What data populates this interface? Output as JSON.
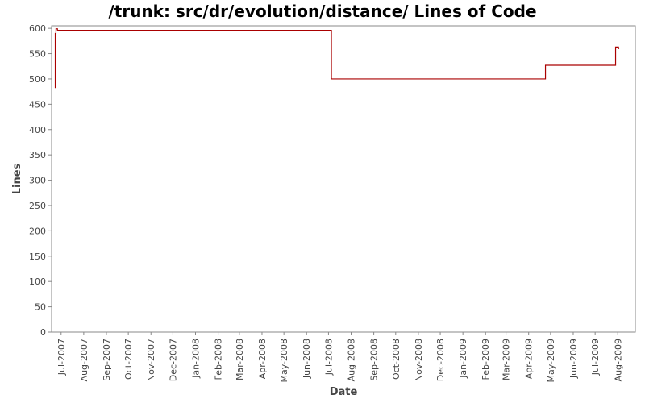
{
  "chart_data": {
    "type": "line",
    "title": "/trunk: src/dr/evolution/distance/ Lines of Code",
    "xlabel": "Date",
    "ylabel": "Lines",
    "ylim": [
      0,
      605
    ],
    "xlim": [
      "2007-06-18",
      "2009-08-25"
    ],
    "yticks": [
      0,
      50,
      100,
      150,
      200,
      250,
      300,
      350,
      400,
      450,
      500,
      550,
      600
    ],
    "xticks": [
      {
        "date": "2007-07-01",
        "label": "Jul-2007"
      },
      {
        "date": "2007-08-01",
        "label": "Aug-2007"
      },
      {
        "date": "2007-09-01",
        "label": "Sep-2007"
      },
      {
        "date": "2007-10-01",
        "label": "Oct-2007"
      },
      {
        "date": "2007-11-01",
        "label": "Nov-2007"
      },
      {
        "date": "2007-12-01",
        "label": "Dec-2007"
      },
      {
        "date": "2008-01-01",
        "label": "Jan-2008"
      },
      {
        "date": "2008-02-01",
        "label": "Feb-2008"
      },
      {
        "date": "2008-03-01",
        "label": "Mar-2008"
      },
      {
        "date": "2008-04-01",
        "label": "Apr-2008"
      },
      {
        "date": "2008-05-01",
        "label": "May-2008"
      },
      {
        "date": "2008-06-01",
        "label": "Jun-2008"
      },
      {
        "date": "2008-07-01",
        "label": "Jul-2008"
      },
      {
        "date": "2008-08-01",
        "label": "Aug-2008"
      },
      {
        "date": "2008-09-01",
        "label": "Sep-2008"
      },
      {
        "date": "2008-10-01",
        "label": "Oct-2008"
      },
      {
        "date": "2008-11-01",
        "label": "Nov-2008"
      },
      {
        "date": "2008-12-01",
        "label": "Dec-2008"
      },
      {
        "date": "2009-01-01",
        "label": "Jan-2009"
      },
      {
        "date": "2009-02-01",
        "label": "Feb-2009"
      },
      {
        "date": "2009-03-01",
        "label": "Mar-2009"
      },
      {
        "date": "2009-04-01",
        "label": "Apr-2009"
      },
      {
        "date": "2009-05-01",
        "label": "May-2009"
      },
      {
        "date": "2009-06-01",
        "label": "Jun-2009"
      },
      {
        "date": "2009-07-01",
        "label": "Jul-2009"
      },
      {
        "date": "2009-08-01",
        "label": "Aug-2009"
      }
    ],
    "grid": false,
    "legend": "none",
    "series": [
      {
        "color": "#aa0000",
        "step": true,
        "points": [
          {
            "x": "2007-06-23",
            "y": 482
          },
          {
            "x": "2007-06-23",
            "y": 590
          },
          {
            "x": "2007-06-24",
            "y": 599
          },
          {
            "x": "2007-06-26",
            "y": 596
          },
          {
            "x": "2008-07-05",
            "y": 500
          },
          {
            "x": "2009-04-24",
            "y": 527
          },
          {
            "x": "2009-07-29",
            "y": 563
          },
          {
            "x": "2009-08-02",
            "y": 560
          },
          {
            "x": "2009-08-03",
            "y": 560
          }
        ]
      }
    ]
  }
}
